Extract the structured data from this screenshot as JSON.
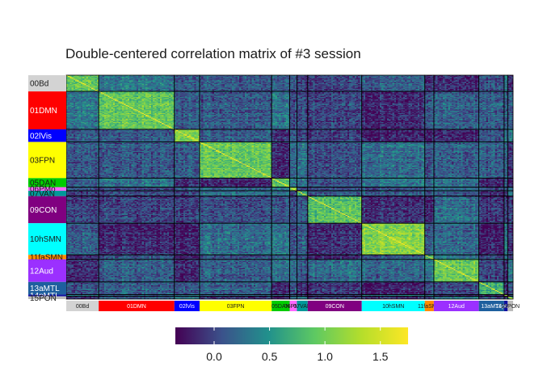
{
  "chart_data": {
    "type": "heatmap",
    "title": "Double-centered correlation matrix of #3 session",
    "xlabel": "",
    "ylabel": "",
    "networks": [
      {
        "label": "00Bd",
        "n": 18,
        "color": "#d3d3d3",
        "text_color": "#1a1a1a"
      },
      {
        "label": "01DMN",
        "n": 42,
        "color": "#ff0000",
        "text_color": "#ffffff"
      },
      {
        "label": "02lVis",
        "n": 14,
        "color": "#0000ff",
        "text_color": "#ffffff"
      },
      {
        "label": "03FPN",
        "n": 40,
        "color": "#ffff00",
        "text_color": "#1a1a1a"
      },
      {
        "label": "05DAN",
        "n": 10,
        "color": "#00cc00",
        "text_color": "#1a1a1a"
      },
      {
        "label": "06PMo",
        "n": 4,
        "color": "#ff66ff",
        "text_color": "#1a1a1a"
      },
      {
        "label": "07VAN",
        "n": 6,
        "color": "#009999",
        "text_color": "#1a1a1a"
      },
      {
        "label": "09CON",
        "n": 30,
        "color": "#800080",
        "text_color": "#ffffff"
      },
      {
        "label": "10hSMN",
        "n": 35,
        "color": "#00ffff",
        "text_color": "#1a1a1a"
      },
      {
        "label": "11faSMN",
        "n": 5,
        "color": "#ff8c00",
        "text_color": "#1a1a1a"
      },
      {
        "label": "12Aud",
        "n": 25,
        "color": "#9b30ff",
        "text_color": "#ffffff"
      },
      {
        "label": "13aMTL",
        "n": 14,
        "color": "#1e5f9e",
        "text_color": "#ffffff"
      },
      {
        "label": "14pMTL",
        "n": 2,
        "color": "#1010a0",
        "text_color": "#ffffff"
      },
      {
        "label": "15PON",
        "n": 3,
        "color": "#bbbbbb",
        "text_color": "#1a1a1a"
      }
    ],
    "color_scale": {
      "name": "viridis",
      "min": -0.35,
      "max": 1.75,
      "ticks": [
        0.0,
        0.5,
        1.0,
        1.5
      ],
      "tick_labels": [
        "0.0",
        "0.5",
        "1.0",
        "1.5"
      ],
      "stops": [
        "#440154",
        "#3b528b",
        "#21918c",
        "#5ec962",
        "#b5de2b",
        "#fde725"
      ]
    },
    "within_network_mean": 0.9,
    "between_network_mean": 0.1
  }
}
